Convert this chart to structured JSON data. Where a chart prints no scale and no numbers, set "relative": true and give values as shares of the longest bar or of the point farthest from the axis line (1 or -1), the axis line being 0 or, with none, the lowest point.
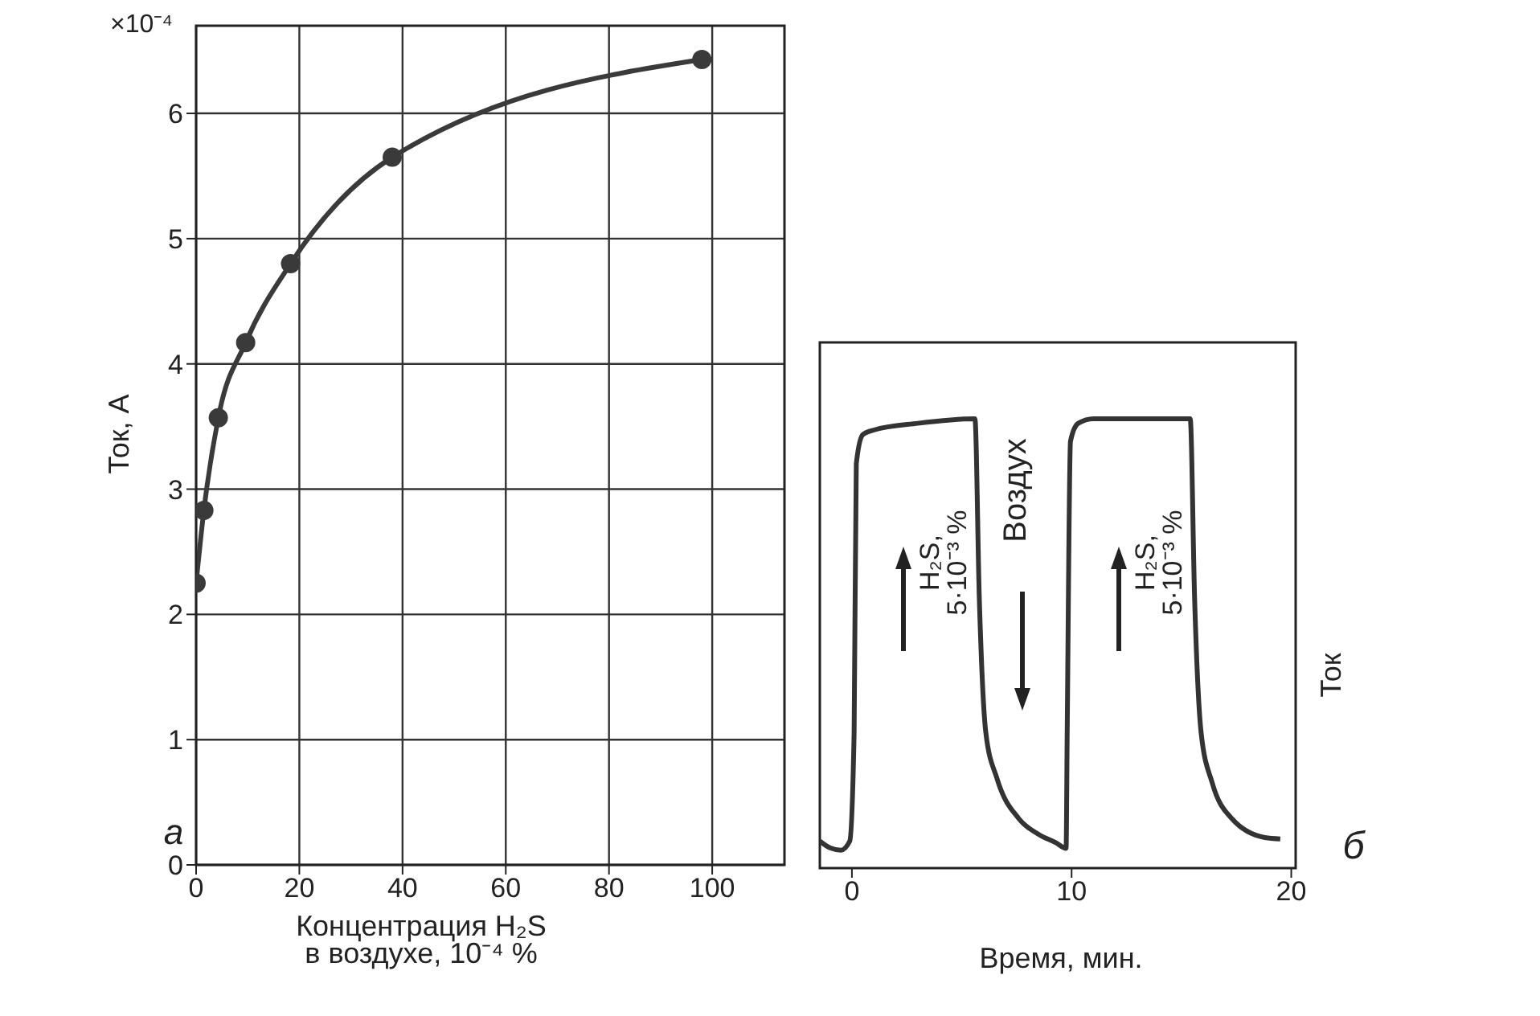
{
  "chart_data": [
    {
      "type": "line",
      "xlabel": "Концентрация H₂S\nв воздухе, 10⁻⁴ %",
      "ylabel": "Ток, А",
      "x": [
        0,
        1.5,
        4.3,
        9.6,
        18.3,
        38,
        98
      ],
      "series": [
        {
          "color": "#3a3a3a",
          "values": [
            2.25,
            2.83,
            3.57,
            4.17,
            4.8,
            5.65,
            6.43
          ]
        }
      ],
      "xlim": [
        0,
        114
      ],
      "xticks": [
        0,
        20,
        40,
        60,
        80,
        100
      ],
      "ylim": [
        0,
        6.7
      ],
      "yticks": [
        0,
        1,
        2,
        3,
        4,
        5,
        6
      ],
      "grid": true,
      "marker": "circle",
      "line_style": "solid",
      "annotations": [
        "а",
        "×10⁻⁴"
      ]
    },
    {
      "type": "line",
      "xlabel": "Время, мин.",
      "ylabel": "Ток",
      "relative": true,
      "x": [
        -1.46,
        -1,
        -0.5,
        -0.1,
        0.1,
        0.2,
        0.5,
        1,
        3,
        5.6,
        5.8,
        6.1,
        6.6,
        7.6,
        8.5,
        9.3,
        9.75,
        9.8,
        9.95,
        10.3,
        11,
        15.4,
        15.6,
        15.9,
        16.4,
        17.3,
        18.8,
        19.5
      ],
      "series": [
        {
          "color": "#333333",
          "values": [
            0.06,
            0.045,
            0.04,
            0.06,
            0.3,
            0.9,
            0.965,
            0.975,
            0.99,
            1.0,
            0.6,
            0.3,
            0.2,
            0.11,
            0.075,
            0.056,
            0.044,
            0.3,
            0.95,
            0.99,
            1.0,
            1.0,
            0.6,
            0.3,
            0.19,
            0.11,
            0.068,
            0.065
          ]
        }
      ],
      "xlim": [
        -1.46,
        20.2
      ],
      "xticks": [
        0,
        10,
        20
      ],
      "tick_labels": "x",
      "marker": "none",
      "line_style": "solid",
      "annotations": [
        "H₂S,\n5·10⁻³ %",
        "Воздух",
        "H₂S,\n5·10⁻³ %",
        "б"
      ]
    }
  ]
}
